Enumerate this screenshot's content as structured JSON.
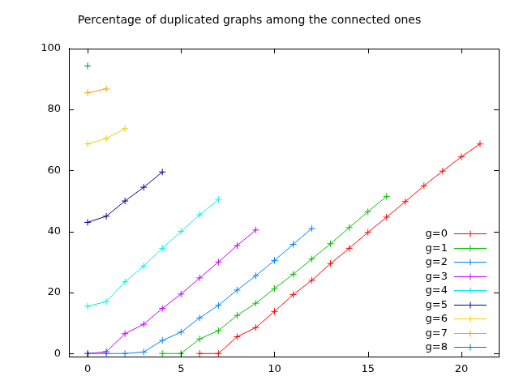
{
  "chart_data": {
    "type": "line",
    "title": "Percentage of duplicated graphs among the connected ones",
    "xlim": [
      -1,
      22
    ],
    "xticks": [
      0,
      5,
      10,
      15,
      20
    ],
    "ylim": [
      -1,
      100
    ],
    "yticks": [
      0,
      20,
      40,
      60,
      80,
      100
    ],
    "grid": false,
    "legend": "lower right",
    "marker": "cross",
    "series": [
      {
        "name": "g=0",
        "color": "#ff0000",
        "x": [
          6,
          7,
          8,
          9,
          10,
          11,
          12,
          13,
          14,
          15,
          16,
          17,
          18,
          19,
          20,
          21
        ],
        "values": [
          0,
          0,
          5.5,
          8.5,
          13.8,
          19.3,
          24,
          29.5,
          34.5,
          39.7,
          44.7,
          49.8,
          55,
          59.8,
          64.5,
          68.7
        ]
      },
      {
        "name": "g=1",
        "color": "#00c000",
        "x": [
          4,
          5,
          6,
          7,
          8,
          9,
          10,
          11,
          12,
          13,
          14,
          15,
          16
        ],
        "values": [
          0,
          0,
          4.8,
          7.5,
          12.5,
          16.5,
          21.3,
          26,
          31,
          36,
          41.3,
          46.5,
          51.5
        ]
      },
      {
        "name": "g=2",
        "color": "#0080ff",
        "x": [
          0,
          1,
          2,
          3,
          4,
          5,
          6,
          7,
          8,
          9,
          10,
          11,
          12
        ],
        "values": [
          0,
          0,
          0,
          0.5,
          4.3,
          7,
          11.7,
          15.8,
          20.8,
          25.5,
          30.5,
          35.8,
          41
        ]
      },
      {
        "name": "g=3",
        "color": "#c000ff",
        "x": [
          0,
          1,
          2,
          3,
          4,
          5,
          6,
          7,
          8,
          9
        ],
        "values": [
          0,
          0.6,
          6.5,
          9.6,
          14.8,
          19.5,
          24.8,
          30,
          35.4,
          40.5
        ]
      },
      {
        "name": "g=4",
        "color": "#00eeee",
        "x": [
          0,
          1,
          2,
          3,
          4,
          5,
          6,
          7
        ],
        "values": [
          15.5,
          17,
          23.5,
          28.7,
          34.5,
          40,
          45.5,
          50.5
        ]
      },
      {
        "name": "g=5",
        "color": "#000090",
        "x": [
          0,
          1,
          2,
          3,
          4
        ],
        "values": [
          43,
          45,
          50,
          54.5,
          59.5
        ]
      },
      {
        "name": "g=6",
        "color": "#f0d000",
        "x": [
          0,
          1,
          2
        ],
        "values": [
          68.7,
          70.5,
          73.7
        ]
      },
      {
        "name": "g=7",
        "color": "#ffa000",
        "x": [
          0,
          1
        ],
        "values": [
          85.5,
          86.7
        ]
      },
      {
        "name": "g=8",
        "color": "#008080",
        "x": [
          0
        ],
        "values": [
          94.3
        ]
      }
    ]
  }
}
